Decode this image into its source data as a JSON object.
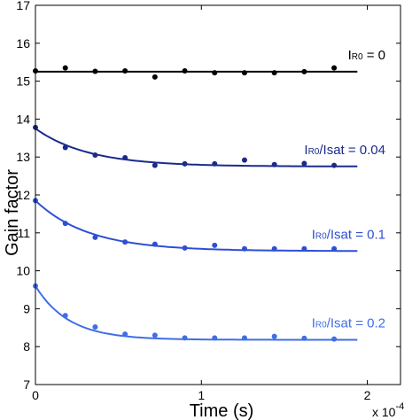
{
  "chart_data": {
    "type": "scatter",
    "xlabel": "Time (s)",
    "ylabel": "Gain factor",
    "x_multiplier": {
      "base": "x 10",
      "exponent": "-4"
    },
    "xlim": [
      0,
      0.00022
    ],
    "ylim": [
      7,
      17
    ],
    "x_ticks": [
      {
        "value": 0,
        "label": "0"
      },
      {
        "value": 0.0001,
        "label": "1"
      },
      {
        "value": 0.0002,
        "label": "2"
      }
    ],
    "y_ticks": [
      7,
      8,
      9,
      10,
      11,
      12,
      13,
      14,
      15,
      16,
      17
    ],
    "grid": false,
    "series": [
      {
        "name": "IR0 = 0",
        "label_main": "I",
        "label_sub": "R0",
        "label_rest": " = 0",
        "color": "#000000",
        "x": [
          0.0,
          1.8e-05,
          3.6e-05,
          5.4e-05,
          7.2e-05,
          9e-05,
          0.000108,
          0.000126,
          0.000144,
          0.000162,
          0.00018
        ],
        "y": [
          15.27,
          15.35,
          15.26,
          15.27,
          15.11,
          15.27,
          15.22,
          15.22,
          15.22,
          15.25,
          15.35
        ],
        "fit": {
          "asymptote": 15.25,
          "start": 15.25,
          "tau": 3e-05,
          "x_end": 0.000194
        }
      },
      {
        "name": "IR0/Isat = 0.04",
        "label_main": "I",
        "label_sub": "R0",
        "label_rest": "/Isat = 0.04",
        "color": "#1b2a8c",
        "x": [
          0.0,
          1.8e-05,
          3.6e-05,
          5.4e-05,
          7.2e-05,
          9e-05,
          0.000108,
          0.000126,
          0.000144,
          0.000162,
          0.00018
        ],
        "y": [
          13.78,
          13.25,
          13.05,
          12.98,
          12.78,
          12.82,
          12.82,
          12.92,
          12.8,
          12.83,
          12.78
        ],
        "fit": {
          "asymptote": 12.75,
          "start": 13.75,
          "tau": 3.2e-05,
          "x_end": 0.000194
        }
      },
      {
        "name": "IR0/Isat = 0.1",
        "label_main": "I",
        "label_sub": "R0",
        "label_rest": "/Isat = 0.1",
        "color": "#2e4fd4",
        "x": [
          0.0,
          1.8e-05,
          3.6e-05,
          5.4e-05,
          7.2e-05,
          9e-05,
          0.000108,
          0.000126,
          0.000144,
          0.000162,
          0.00018
        ],
        "y": [
          11.85,
          11.25,
          10.88,
          10.76,
          10.7,
          10.6,
          10.67,
          10.58,
          10.58,
          10.58,
          10.58
        ],
        "fit": {
          "asymptote": 10.52,
          "start": 11.85,
          "tau": 3.2e-05,
          "x_end": 0.000194
        }
      },
      {
        "name": "IR0/Isat = 0.2",
        "label_main": "I",
        "label_sub": "R0",
        "label_rest": "/Isat = 0.2",
        "color": "#3f6ee6",
        "x": [
          0.0,
          1.8e-05,
          3.6e-05,
          5.4e-05,
          7.2e-05,
          9e-05,
          0.000108,
          0.000126,
          0.000144,
          0.000162,
          0.00018
        ],
        "y": [
          9.6,
          8.82,
          8.52,
          8.33,
          8.3,
          8.23,
          8.23,
          8.23,
          8.27,
          8.22,
          8.2
        ],
        "fit": {
          "asymptote": 8.18,
          "start": 9.6,
          "tau": 2e-05,
          "x_end": 0.000194
        }
      }
    ]
  }
}
